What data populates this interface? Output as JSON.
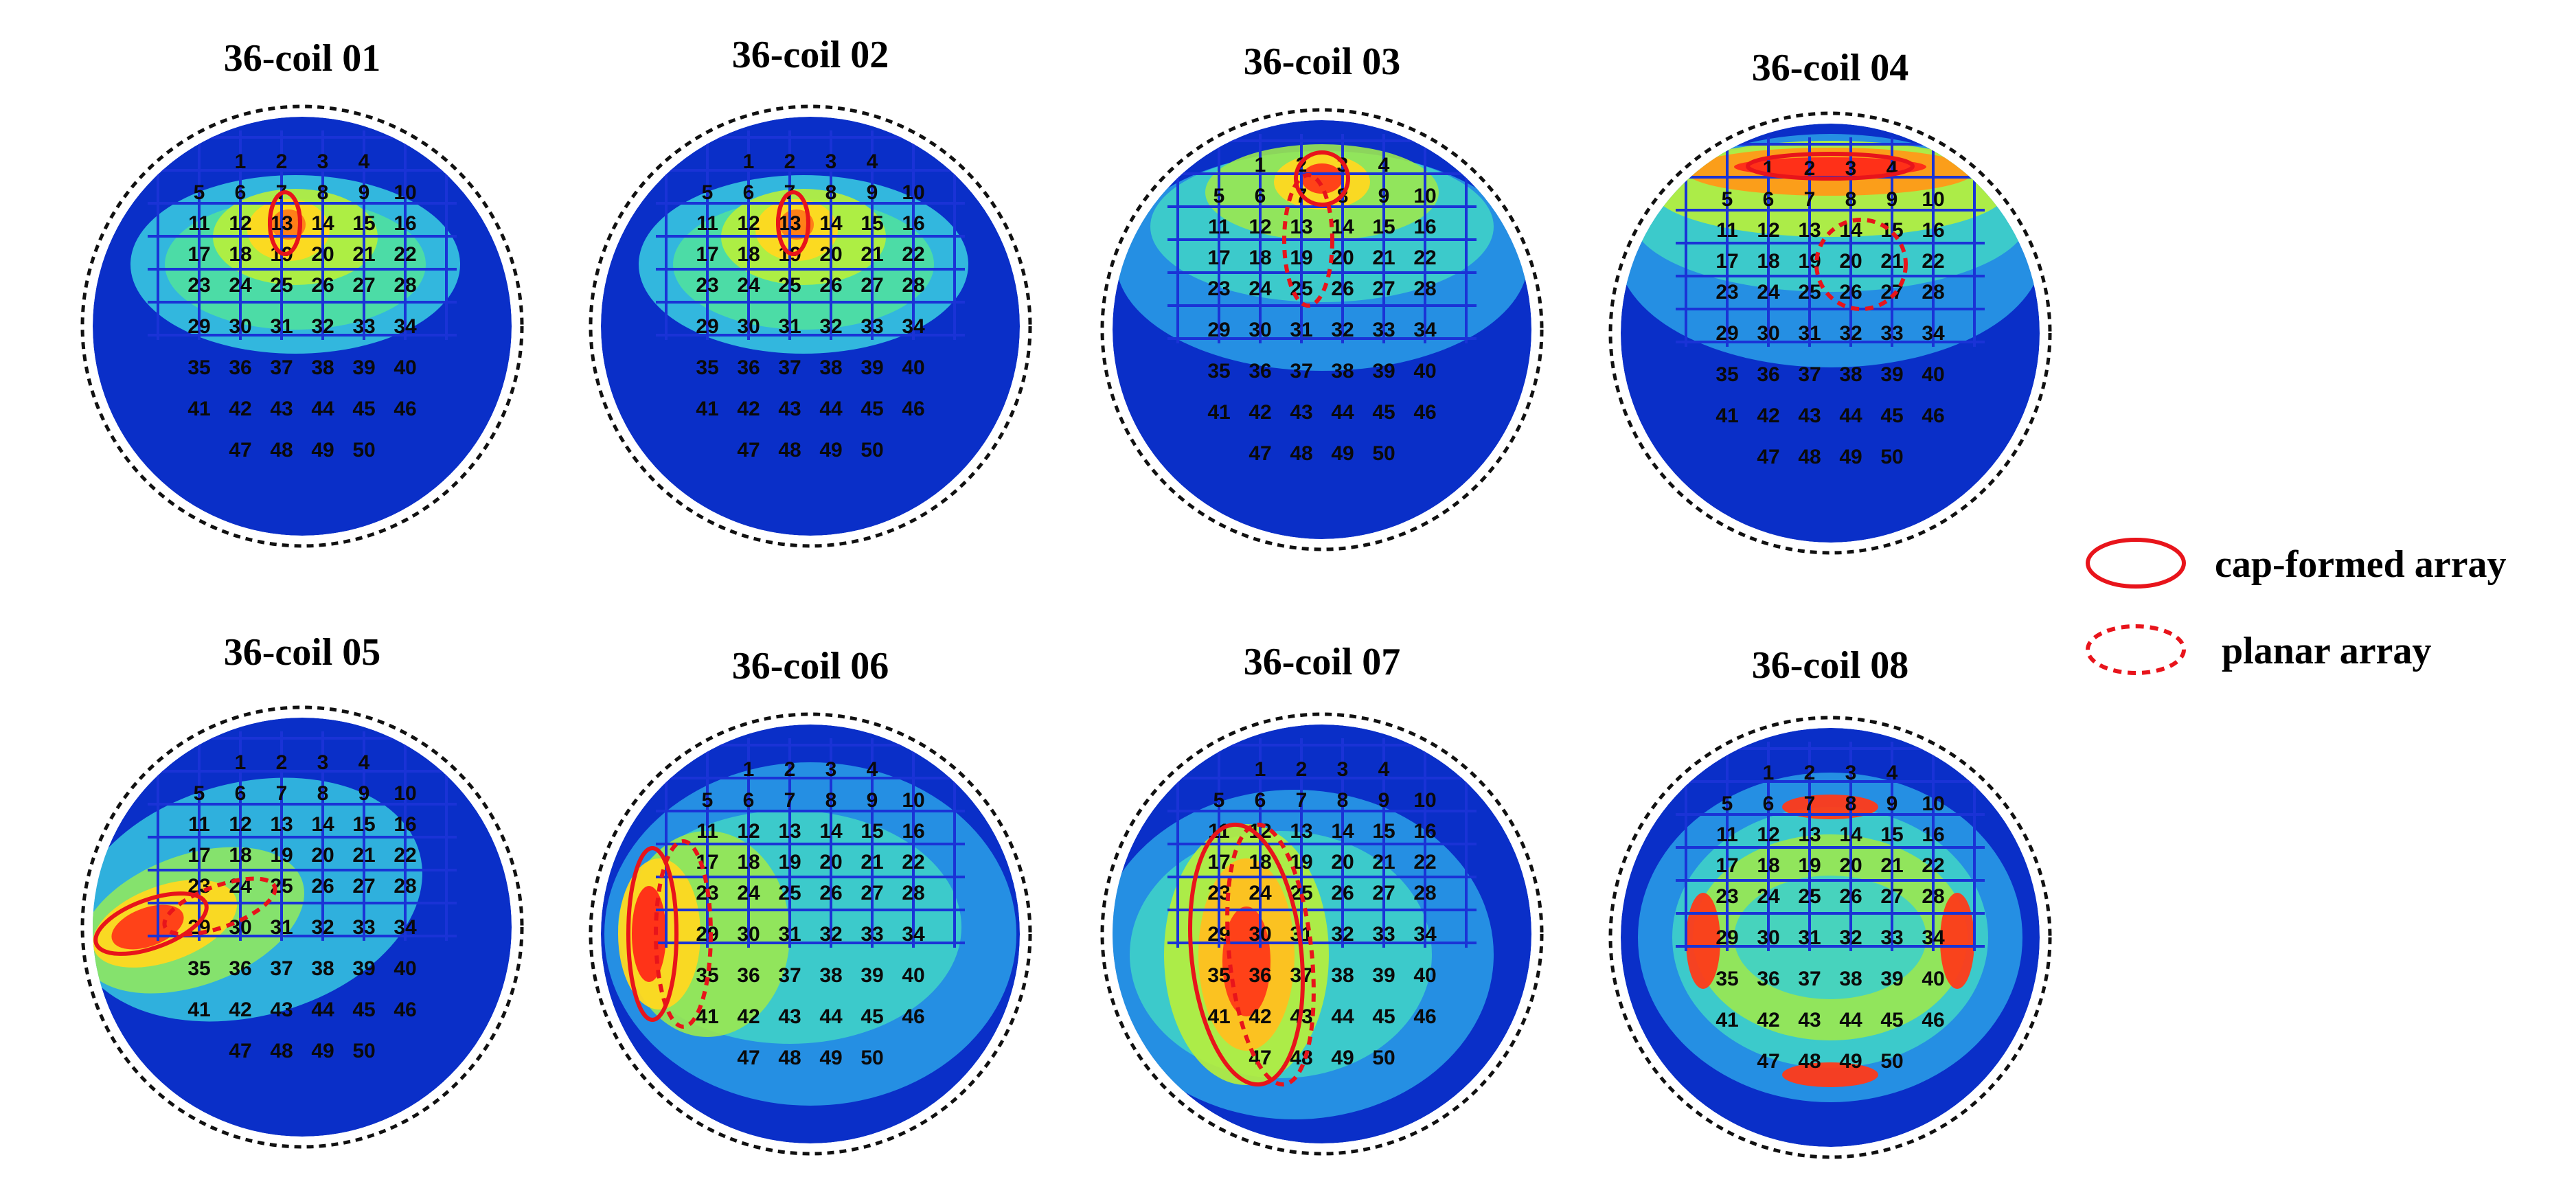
{
  "figure": {
    "panels": [
      {
        "title": "36-coil 01",
        "focus": "upper-center",
        "cap_marker": "small-vertical",
        "planar_marker": "small-vertical"
      },
      {
        "title": "36-coil 02",
        "focus": "upper-center",
        "cap_marker": "small-vertical",
        "planar_marker": "small-vertical"
      },
      {
        "title": "36-coil 03",
        "focus": "top-center",
        "cap_marker": "small-circle",
        "planar_marker": "vertical-long"
      },
      {
        "title": "36-coil 04",
        "focus": "top-band",
        "cap_marker": "horizontal-wide",
        "planar_marker": "center-circle"
      },
      {
        "title": "36-coil 05",
        "focus": "left-diagonal",
        "cap_marker": "diagonal-left",
        "planar_marker": "diagonal-right"
      },
      {
        "title": "36-coil 06",
        "focus": "left-band",
        "cap_marker": "left-vertical",
        "planar_marker": "left-vertical-wide"
      },
      {
        "title": "36-coil 07",
        "focus": "left-lower",
        "cap_marker": "tall-left",
        "planar_marker": "tall-right"
      },
      {
        "title": "36-coil 08",
        "focus": "symmetric",
        "cap_marker": "none",
        "planar_marker": "none"
      }
    ],
    "grid_rows": [
      [
        "1",
        "2",
        "3",
        "4"
      ],
      [
        "5",
        "6",
        "7",
        "8",
        "9",
        "10"
      ],
      [
        "11",
        "12",
        "13",
        "14",
        "15",
        "16"
      ],
      [
        "17",
        "18",
        "19",
        "20",
        "21",
        "22"
      ],
      [
        "23",
        "24",
        "25",
        "26",
        "27",
        "28"
      ],
      [
        "29",
        "30",
        "31",
        "32",
        "33",
        "34"
      ],
      [
        "35",
        "36",
        "37",
        "38",
        "39",
        "40"
      ],
      [
        "41",
        "42",
        "43",
        "44",
        "45",
        "46"
      ],
      [
        "47",
        "48",
        "49",
        "50"
      ]
    ],
    "legend": {
      "cap_label": "cap-formed array",
      "planar_label": "planar array"
    },
    "colors": {
      "background_field": "#0a2fc8",
      "grid_lines": "#1a33d6",
      "marker": "#e8141b",
      "outline": "#111111"
    }
  }
}
